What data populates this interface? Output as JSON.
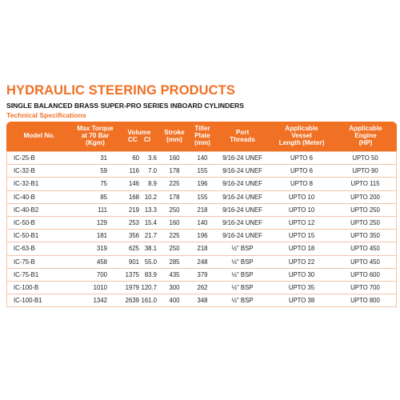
{
  "title": "HYDRAULIC STEERING PRODUCTS",
  "subtitle": "SINGLE BALANCED BRASS SUPER-PRO SERIES INBOARD CYLINDERS",
  "section": "Technical Specifications",
  "table": {
    "headers": {
      "model": "Model No.",
      "torque": [
        "Max Torque",
        "at 70 Bar",
        "(Kgm)"
      ],
      "volume": "Volume",
      "volume_cc": "CC",
      "volume_ci": "CI",
      "stroke": [
        "Stroke",
        "(mm)"
      ],
      "tiller": [
        "Tiller",
        "Plate",
        "(mm)"
      ],
      "port": [
        "Port",
        "Threads"
      ],
      "vessel": [
        "Applicable",
        "Vessel",
        "Length (Meter)"
      ],
      "engine": [
        "Applicable",
        "Engine",
        "(HP)"
      ]
    },
    "rows": [
      {
        "model": "IC-25-B",
        "torque": "31",
        "cc": "60",
        "ci": "3.6",
        "stroke": "160",
        "tiller": "140",
        "port": "9/16-24 UNEF",
        "vessel": "UPTO 6",
        "engine": "UPTO 50"
      },
      {
        "model": "IC-32-B",
        "torque": "59",
        "cc": "116",
        "ci": "7.0",
        "stroke": "178",
        "tiller": "155",
        "port": "9/16-24 UNEF",
        "vessel": "UPTO 6",
        "engine": "UPTO 90"
      },
      {
        "model": "IC-32-B1",
        "torque": "75",
        "cc": "146",
        "ci": "8.9",
        "stroke": "225",
        "tiller": "196",
        "port": "9/16-24 UNEF",
        "vessel": "UPTO 8",
        "engine": "UPTO 115"
      },
      {
        "model": "IC-40-B",
        "torque": "85",
        "cc": "168",
        "ci": "10.2",
        "stroke": "178",
        "tiller": "155",
        "port": "9/16-24 UNEF",
        "vessel": "UPTO 10",
        "engine": "UPTO 200"
      },
      {
        "model": "IC-40-B2",
        "torque": "111",
        "cc": "219",
        "ci": "13.3",
        "stroke": "250",
        "tiller": "218",
        "port": "9/16-24 UNEF",
        "vessel": "UPTO 10",
        "engine": "UPTO 250"
      },
      {
        "model": "IC-50-B",
        "torque": "129",
        "cc": "253",
        "ci": "15.4",
        "stroke": "160",
        "tiller": "140",
        "port": "9/16-24 UNEF",
        "vessel": "UPTO 12",
        "engine": "UPTO 250"
      },
      {
        "model": "IC-50-B1",
        "torque": "181",
        "cc": "356",
        "ci": "21.7",
        "stroke": "225",
        "tiller": "196",
        "port": "9/16-24 UNEF",
        "vessel": "UPTO 15",
        "engine": "UPTO 350"
      },
      {
        "model": "IC-63-B",
        "torque": "319",
        "cc": "625",
        "ci": "38.1",
        "stroke": "250",
        "tiller": "218",
        "port": "½\" BSP",
        "vessel": "UPTO 18",
        "engine": "UPTO 450"
      },
      {
        "model": "IC-75-B",
        "torque": "458",
        "cc": "901",
        "ci": "55.0",
        "stroke": "285",
        "tiller": "248",
        "port": "½\" BSP",
        "vessel": "UPTO 22",
        "engine": "UPTO 450"
      },
      {
        "model": "IC-75-B1",
        "torque": "700",
        "cc": "1375",
        "ci": "83.9",
        "stroke": "435",
        "tiller": "379",
        "port": "½\" BSP",
        "vessel": "UPTO 30",
        "engine": "UPTO 600"
      },
      {
        "model": "IC-100-B",
        "torque": "1010",
        "cc": "1979",
        "ci": "120.7",
        "stroke": "300",
        "tiller": "262",
        "port": "½\" BSP",
        "vessel": "UPTO 35",
        "engine": "UPTO 700"
      },
      {
        "model": "IC-100-B1",
        "torque": "1342",
        "cc": "2639",
        "ci": "161.0",
        "stroke": "400",
        "tiller": "348",
        "port": "½\" BSP",
        "vessel": "UPTO 38",
        "engine": "UPTO 800"
      }
    ]
  }
}
